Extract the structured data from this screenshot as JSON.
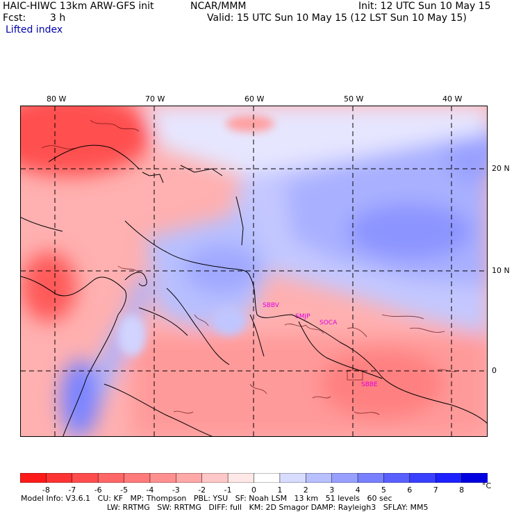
{
  "header": {
    "title": "HAIC-HIWC 13km ARW-GFS init",
    "org": "NCAR/MMM",
    "init": "Init: 12 UTC Sun 10 May 15",
    "fcst_label": "Fcst:",
    "fcst_value": "3 h",
    "valid": "Valid: 15 UTC Sun 10 May 15 (12 LST Sun 10 May 15)",
    "field": "Lifted index"
  },
  "map": {
    "lon_labels": [
      "80 W",
      "70 W",
      "60 W",
      "50 W",
      "40 W"
    ],
    "lat_labels": [
      "20 N",
      "10 N",
      "0"
    ],
    "stations": [
      "SBBV",
      "SMJP",
      "SOCA",
      "SBBE"
    ]
  },
  "colorbar": {
    "ticks": [
      "-8",
      "-7",
      "-6",
      "-5",
      "-4",
      "-3",
      "-2",
      "-1",
      "0",
      "1",
      "2",
      "3",
      "4",
      "5",
      "6",
      "7",
      "8"
    ],
    "unit": "°C",
    "colors": [
      "#ff1a1a",
      "#ff3333",
      "#ff4d4d",
      "#ff6666",
      "#ff7a7a",
      "#ff9090",
      "#ffa8a8",
      "#ffc8c8",
      "#ffe8e8",
      "#ffffff",
      "#d8dcff",
      "#b8c0ff",
      "#98a0ff",
      "#7880ff",
      "#5a60ff",
      "#3a40ff",
      "#1c22ff",
      "#0000e0"
    ]
  },
  "footer": {
    "line1": "Model Info: V3.6.1   CU: KF   MP: Thompson   PBL: YSU   SF: Noah LSM   13 km   51 levels   60 sec",
    "line2": "LW: RRTMG   SW: RRTMG   DIFF: full   KM: 2D Smagor DAMP: Rayleigh3   SFLAY: MM5"
  }
}
